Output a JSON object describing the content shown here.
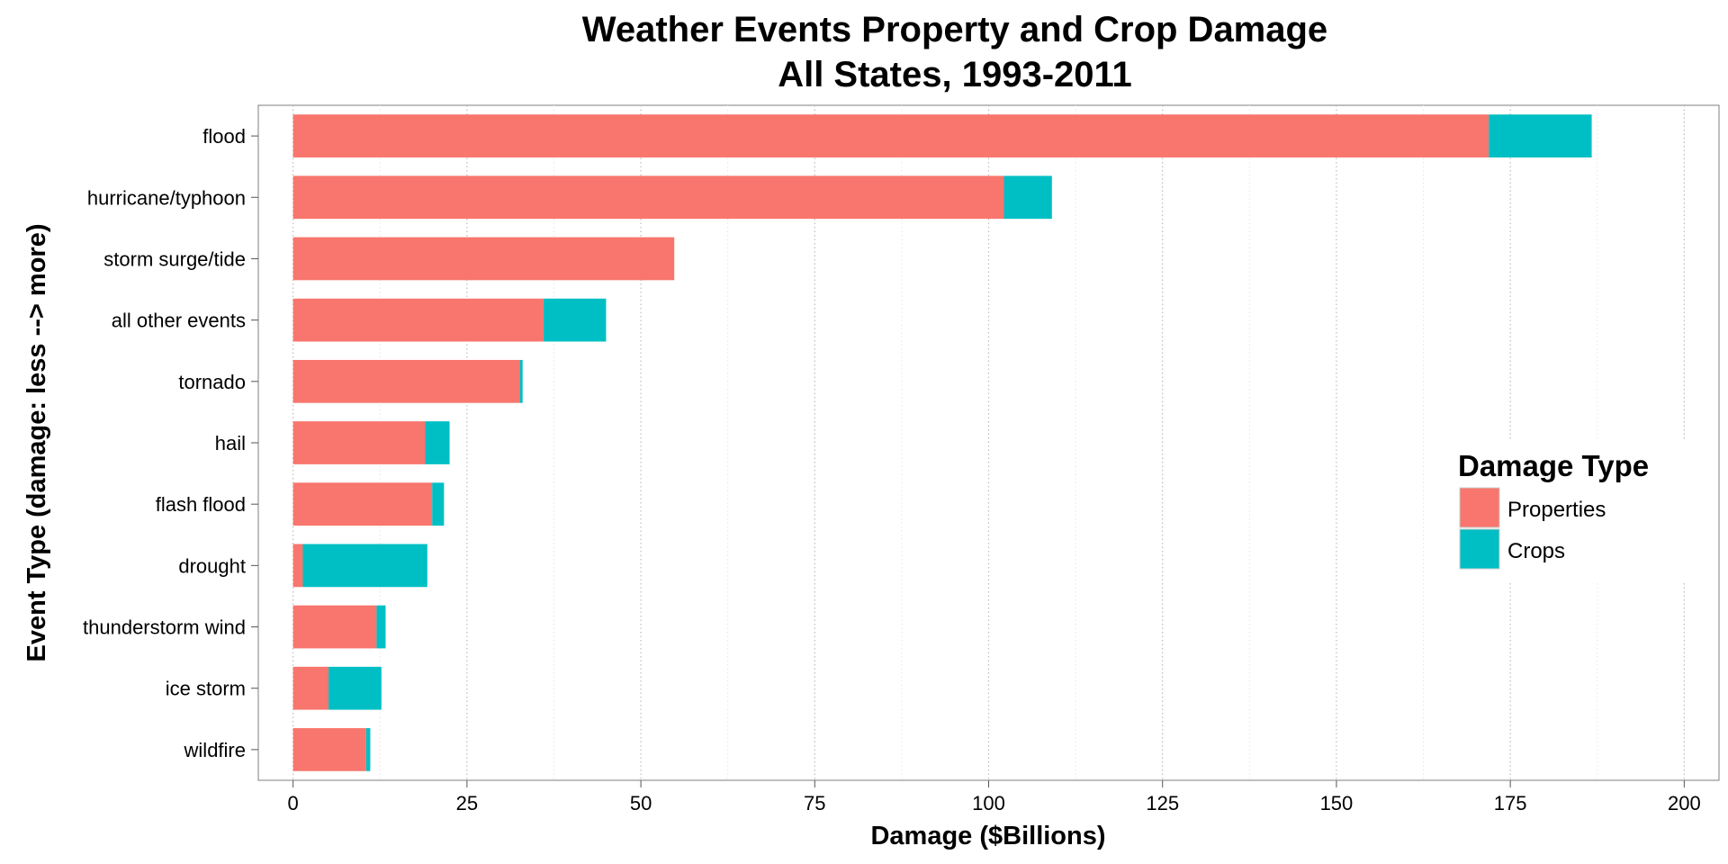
{
  "chart_data": {
    "type": "bar",
    "orientation": "horizontal",
    "stacked": true,
    "title": "Weather Events Property and Crop Damage",
    "subtitle": "All States, 1993-2011",
    "xlabel": "Damage ($Billions)",
    "ylabel": "Event Type (damage:  less  -->  more)",
    "xlim": [
      -5,
      205
    ],
    "xticks": [
      "0",
      "25",
      "50",
      "75",
      "100",
      "125",
      "150",
      "175",
      "200"
    ],
    "categories": [
      "flood",
      "hurricane/typhoon",
      "storm surge/tide",
      "all other events",
      "tornado",
      "hail",
      "flash flood",
      "drought",
      "thunderstorm wind",
      "ice storm",
      "wildfire"
    ],
    "series": [
      {
        "name": "Properties",
        "color": "#F8766D",
        "values": [
          171.9,
          102.2,
          54.8,
          36.0,
          32.6,
          19.0,
          20.0,
          1.4,
          12.0,
          5.1,
          10.5
        ]
      },
      {
        "name": "Crops",
        "color": "#00BFC4",
        "values": [
          14.8,
          6.9,
          0.0,
          9.0,
          0.4,
          3.5,
          1.7,
          17.9,
          1.3,
          7.6,
          0.6
        ]
      }
    ],
    "grid": true,
    "legend": {
      "title": "Damage Type",
      "placement": "right"
    }
  }
}
